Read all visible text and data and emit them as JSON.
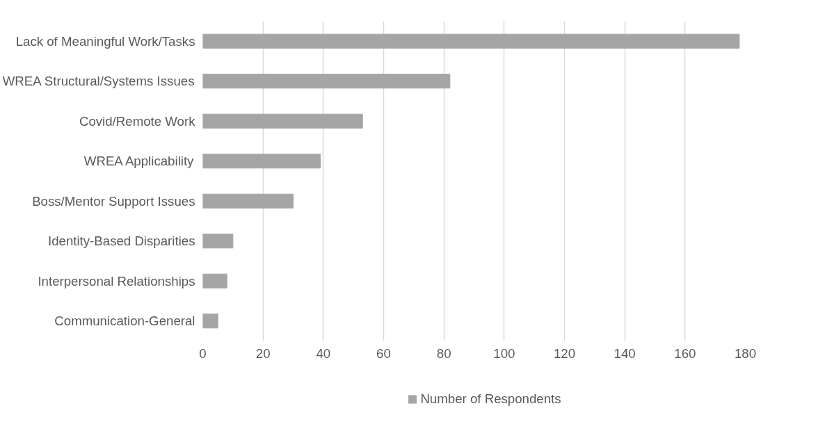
{
  "chart_data": {
    "type": "bar",
    "orientation": "horizontal",
    "categories": [
      "Lack of Meaningful Work/Tasks",
      "WREA Structural/Systems Issues",
      "Covid/Remote Work",
      "WREA Applicability",
      "Boss/Mentor Support Issues",
      "Identity-Based Disparities",
      "Interpersonal Relationships",
      "Communication-General"
    ],
    "series": [
      {
        "name": "Number of Respondents",
        "color": "#a5a5a5",
        "values": [
          178,
          82,
          53,
          39,
          30,
          10,
          8,
          5
        ]
      }
    ],
    "xlim": [
      0,
      180
    ],
    "xticks": [
      0,
      20,
      40,
      60,
      80,
      100,
      120,
      140,
      160,
      180
    ],
    "grid": "x",
    "legend": "bottom"
  }
}
